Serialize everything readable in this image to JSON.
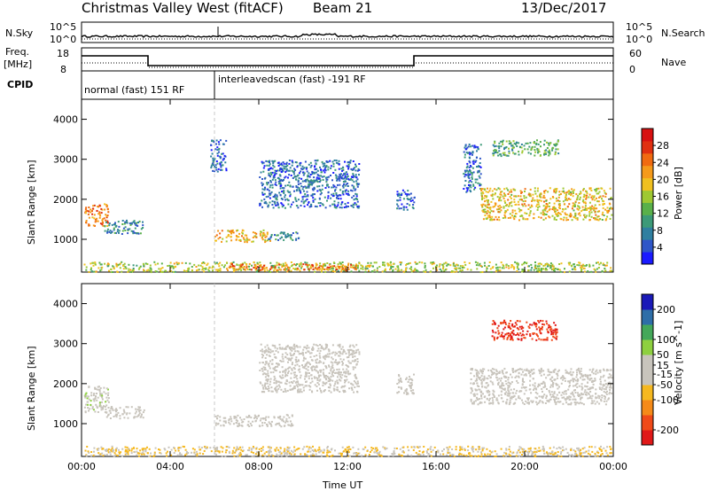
{
  "header": {
    "radar": "Christmas Valley West (fitACF)",
    "beam": "Beam 21",
    "date": "13/Dec/2017"
  },
  "top_panels": {
    "nsky_label": "N.Sky",
    "nsky_ticks": [
      "10^5",
      "10^0"
    ],
    "nsearch_label": "N.Search",
    "nsearch_ticks": [
      "10^5",
      "10^0"
    ],
    "freq_label_line1": "Freq.",
    "freq_label_line2": "[MHz]",
    "freq_ticks": [
      "18",
      "8"
    ],
    "nave_label": "Nave",
    "nave_ticks": [
      "60",
      "0"
    ],
    "cpid_label": "CPID",
    "cpid_segments": [
      "normal (fast) 151 RF",
      "interleavedscan (fast) -191 RF"
    ]
  },
  "colors": {
    "power_scale": [
      "#1a1aff",
      "#2e56c8",
      "#2f7fa0",
      "#3c9a78",
      "#59b04a",
      "#9ec832",
      "#f0c020",
      "#f59a1a",
      "#f06a10",
      "#e03010",
      "#d81010"
    ],
    "velocity_scale": [
      "#e01818",
      "#f04a18",
      "#f58a18",
      "#f5b820",
      "#c8c4bc",
      "#c8c4bc",
      "#8ed040",
      "#44a85a",
      "#2e6ea8",
      "#1a1ab8"
    ],
    "ground_scatter": "#bdbdb6"
  },
  "chart_data": [
    {
      "type": "heatmap",
      "name": "power",
      "xlabel": "",
      "ylabel": "Slant Range [km]",
      "x_ticks": [
        "00:00",
        "04:00",
        "08:00",
        "12:00",
        "16:00",
        "20:00",
        "00:00"
      ],
      "xlim": [
        0,
        24
      ],
      "ylim": [
        180,
        4500
      ],
      "y_ticks": [
        1000,
        2000,
        3000,
        4000
      ],
      "colorbar": {
        "label": "Power [dB]",
        "ticks": [
          4,
          8,
          12,
          16,
          20,
          24,
          28
        ],
        "range": [
          0,
          32
        ]
      },
      "regions": [
        {
          "t0": 0.1,
          "t1": 1.2,
          "r0": 1350,
          "r1": 1900,
          "value": 24
        },
        {
          "t0": 1.0,
          "t1": 2.8,
          "r0": 1150,
          "r1": 1500,
          "value": 8
        },
        {
          "t0": 0.1,
          "t1": 23.9,
          "r0": 200,
          "r1": 450,
          "value": 16
        },
        {
          "t0": 6.5,
          "t1": 12.5,
          "r0": 250,
          "r1": 400,
          "value": 24
        },
        {
          "t0": 6.0,
          "t1": 8.5,
          "r0": 950,
          "r1": 1250,
          "value": 20
        },
        {
          "t0": 8.3,
          "t1": 9.8,
          "r0": 1000,
          "r1": 1200,
          "value": 8
        },
        {
          "t0": 5.8,
          "t1": 6.5,
          "r0": 2700,
          "r1": 3500,
          "value": 6
        },
        {
          "t0": 8.0,
          "t1": 12.5,
          "r0": 1800,
          "r1": 3000,
          "value": 6
        },
        {
          "t0": 14.2,
          "t1": 15.0,
          "r0": 1750,
          "r1": 2250,
          "value": 6
        },
        {
          "t0": 17.2,
          "t1": 18.0,
          "r0": 2200,
          "r1": 3400,
          "value": 6
        },
        {
          "t0": 18.0,
          "t1": 23.9,
          "r0": 1500,
          "r1": 2300,
          "value": 19
        },
        {
          "t0": 18.5,
          "t1": 21.5,
          "r0": 3100,
          "r1": 3500,
          "value": 12
        }
      ]
    },
    {
      "type": "heatmap",
      "name": "velocity",
      "xlabel": "Time UT",
      "ylabel": "Slant Range [km]",
      "x_ticks": [
        "00:00",
        "04:00",
        "08:00",
        "12:00",
        "16:00",
        "20:00",
        "00:00"
      ],
      "xlim": [
        0,
        24
      ],
      "ylim": [
        180,
        4500
      ],
      "y_ticks": [
        1000,
        2000,
        3000,
        4000
      ],
      "colorbar": {
        "label": "Velocity [m s^-1]",
        "ticks": [
          -200,
          -100,
          -50,
          -15,
          15,
          50,
          100,
          200
        ],
        "range": [
          -250,
          250
        ]
      },
      "regions": [
        {
          "t0": 0.1,
          "t1": 1.2,
          "r0": 1300,
          "r1": 1950,
          "value": 40
        },
        {
          "t0": 1.0,
          "t1": 2.8,
          "r0": 1150,
          "r1": 1450,
          "value": 20
        },
        {
          "t0": 0.1,
          "t1": 23.9,
          "r0": 200,
          "r1": 450,
          "value": -50
        },
        {
          "t0": 6.0,
          "t1": 9.5,
          "r0": 950,
          "r1": 1250,
          "value": 0
        },
        {
          "t0": 8.0,
          "t1": 12.5,
          "r0": 1800,
          "r1": 3000,
          "value": 30
        },
        {
          "t0": 14.2,
          "t1": 15.0,
          "r0": 1750,
          "r1": 2250,
          "value": 30
        },
        {
          "t0": 17.5,
          "t1": 23.9,
          "r0": 1500,
          "r1": 2400,
          "value": 0
        },
        {
          "t0": 18.5,
          "t1": 21.5,
          "r0": 3100,
          "r1": 3600,
          "value": -200
        }
      ]
    }
  ]
}
